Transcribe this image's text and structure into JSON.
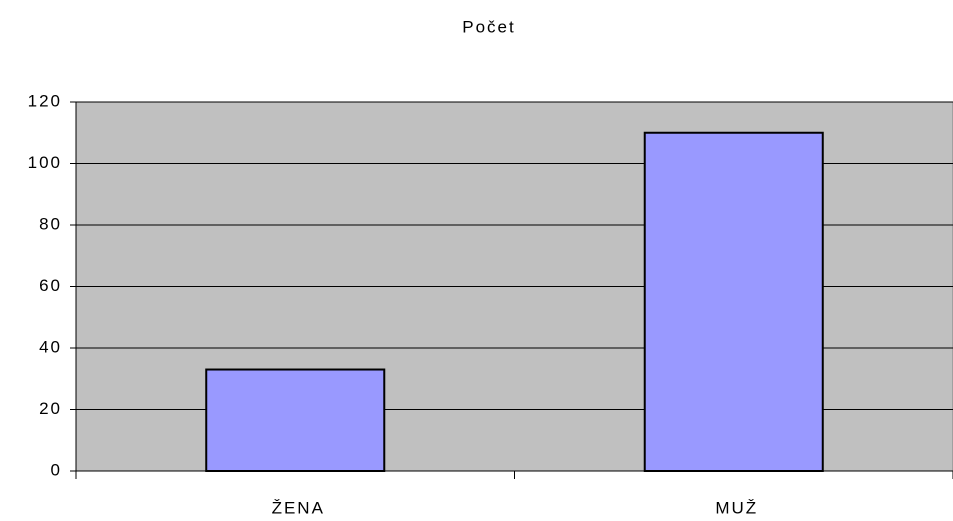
{
  "chart_data": {
    "type": "bar",
    "title": "Počet",
    "categories": [
      "ŽENA",
      "MUŽ"
    ],
    "values": [
      33,
      110
    ],
    "color": "#9999ff",
    "ylim": [
      0,
      120
    ],
    "yticks": [
      0,
      20,
      40,
      60,
      80,
      100,
      120
    ],
    "grid": true
  }
}
